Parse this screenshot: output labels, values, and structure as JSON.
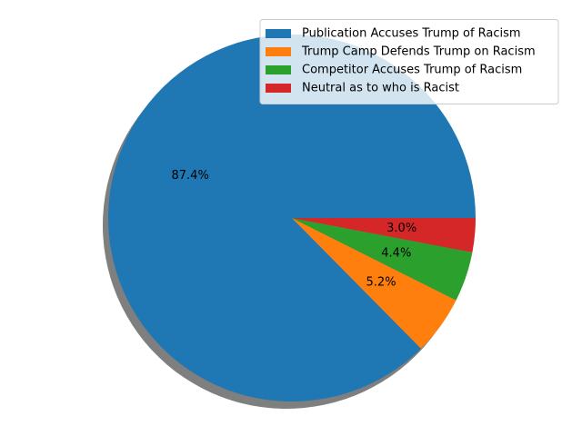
{
  "chart_data": {
    "type": "pie",
    "title": "",
    "shadow": true,
    "start_angle_deg": 0,
    "direction": "counterclockwise",
    "legend_position": "top-right",
    "slices": [
      {
        "label": "Publication Accuses Trump of Racism",
        "value": 87.4,
        "pct_label": "87.4%",
        "color": "#1f77b4"
      },
      {
        "label": "Trump Camp Defends Trump on Racism",
        "value": 5.2,
        "pct_label": "5.2%",
        "color": "#ff7f0e"
      },
      {
        "label": "Competitor Accuses Trump of Racism",
        "value": 4.4,
        "pct_label": "4.4%",
        "color": "#2ca02c"
      },
      {
        "label": "Neutral as to who is Racist",
        "value": 3.0,
        "pct_label": "3.0%",
        "color": "#d62728"
      }
    ]
  }
}
